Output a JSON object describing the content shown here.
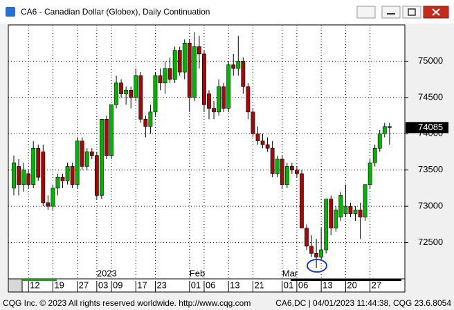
{
  "chart_data": {
    "type": "candlestick",
    "title": "CA6 - Canadian Dollar (Globex), Daily Continuation",
    "categories": [
      null,
      null,
      null,
      "12",
      null,
      null,
      null,
      null,
      "19",
      null,
      null,
      null,
      null,
      "27",
      null,
      null,
      null,
      "03",
      null,
      null,
      "09",
      null,
      null,
      null,
      null,
      "17",
      null,
      null,
      null,
      "23",
      null,
      null,
      null,
      null,
      null,
      null,
      "01",
      null,
      null,
      "06",
      null,
      null,
      null,
      null,
      "13",
      null,
      null,
      null,
      null,
      "21",
      null,
      null,
      null,
      null,
      null,
      "01",
      null,
      null,
      "06",
      null,
      null,
      null,
      null,
      "13",
      null,
      null,
      null,
      null,
      "20",
      null,
      null,
      null,
      null,
      "27",
      null,
      null,
      null,
      null
    ],
    "periods": [
      null,
      null,
      null,
      null,
      null,
      null,
      null,
      null,
      null,
      null,
      null,
      null,
      null,
      null,
      null,
      null,
      null,
      "2023",
      null,
      null,
      null,
      null,
      null,
      null,
      null,
      null,
      null,
      null,
      null,
      null,
      null,
      null,
      null,
      null,
      null,
      null,
      "Feb",
      null,
      null,
      null,
      null,
      null,
      null,
      null,
      null,
      null,
      null,
      null,
      null,
      null,
      null,
      null,
      null,
      null,
      null,
      "Mar",
      null,
      null,
      null,
      null,
      null,
      null,
      null,
      null,
      null,
      null,
      null,
      null,
      null,
      null,
      null,
      null,
      null,
      null,
      null,
      null,
      null,
      null
    ],
    "open": [
      73250,
      73550,
      73300,
      73450,
      73300,
      73800,
      73750,
      73050,
      73000,
      73250,
      73400,
      73350,
      73550,
      73300,
      73900,
      73550,
      73750,
      73700,
      73150,
      74200,
      73700,
      74400,
      74700,
      74550,
      74600,
      74500,
      74800,
      74200,
      74100,
      74300,
      74800,
      74700,
      74900,
      74750,
      75150,
      74850,
      75250,
      74500,
      75200,
      75100,
      74550,
      74350,
      74300,
      74650,
      74350,
      74950,
      74900,
      75000,
      74650,
      74300,
      74000,
      73900,
      73850,
      73800,
      73450,
      73650,
      73300,
      73550,
      73500,
      73450,
      72700,
      72450,
      72350,
      72300,
      72400,
      73100,
      72700,
      72850,
      72900,
      73000,
      72900,
      72950,
      72850,
      73300,
      73600,
      73800,
      74000,
      74100
    ],
    "high": [
      73700,
      73650,
      73600,
      73500,
      73900,
      73850,
      73850,
      73150,
      73300,
      73450,
      73450,
      73600,
      73600,
      73950,
      73950,
      73800,
      73800,
      73750,
      74200,
      74250,
      74400,
      74800,
      74750,
      74650,
      74650,
      74900,
      74850,
      74250,
      74400,
      74850,
      74900,
      75000,
      75050,
      75200,
      75200,
      75300,
      75300,
      75400,
      75350,
      75150,
      74600,
      74450,
      74750,
      74700,
      75000,
      75100,
      75350,
      75050,
      74700,
      74350,
      74100,
      74000,
      73950,
      73900,
      73700,
      73700,
      73600,
      73600,
      73550,
      73500,
      72750,
      72600,
      72550,
      72700,
      73100,
      73150,
      73000,
      73200,
      73300,
      73050,
      73000,
      73050,
      73300,
      73650,
      73850,
      74050,
      74150,
      74150
    ],
    "low": [
      73150,
      73150,
      73200,
      73250,
      73250,
      73350,
      73000,
      72950,
      72950,
      73150,
      73250,
      73300,
      73250,
      73250,
      73500,
      73500,
      73650,
      73100,
      73100,
      73650,
      73650,
      74350,
      74500,
      74400,
      74350,
      74450,
      74150,
      73950,
      74000,
      74250,
      74600,
      74550,
      74700,
      74700,
      74800,
      74750,
      74300,
      74450,
      74900,
      74300,
      74200,
      74200,
      74250,
      74300,
      74300,
      74800,
      74800,
      74550,
      74200,
      73950,
      73850,
      73800,
      73750,
      73400,
      73400,
      73250,
      73250,
      73450,
      73400,
      72700,
      72400,
      72300,
      72150,
      72250,
      72350,
      72600,
      72650,
      72800,
      72850,
      72850,
      72800,
      72550,
      72800,
      73250,
      73550,
      73750,
      73950,
      73850
    ],
    "close": [
      73600,
      73300,
      73500,
      73300,
      73800,
      73400,
      73050,
      73000,
      73250,
      73400,
      73350,
      73550,
      73300,
      73900,
      73550,
      73750,
      73700,
      73150,
      74200,
      73700,
      74400,
      74700,
      74550,
      74600,
      74500,
      74800,
      74200,
      74100,
      74300,
      74800,
      74700,
      74900,
      74750,
      75150,
      74850,
      75250,
      74500,
      75200,
      75100,
      74400,
      74350,
      74300,
      74650,
      74350,
      74950,
      74900,
      75000,
      74650,
      74300,
      74000,
      73900,
      73850,
      73800,
      73450,
      73650,
      73300,
      73550,
      73500,
      73450,
      72700,
      72450,
      72350,
      72300,
      72400,
      73100,
      72700,
      72950,
      73150,
      73000,
      72900,
      72950,
      72850,
      73300,
      73600,
      73800,
      74000,
      74100,
      74085
    ],
    "up_color": "#00b400",
    "down_color": "#a00a0a",
    "ylim": [
      72000,
      75500
    ],
    "yticks": [
      72500,
      73000,
      73500,
      74000,
      74500,
      75000
    ],
    "grid": true,
    "last_value": 74085
  },
  "footer": {
    "left": "CQG Inc. © 2023 All rights reserved worldwide. http://www.cqg.com",
    "right": "CA6,DC | 04/01/2023 11:44:38, CQG 23.6.8054"
  }
}
